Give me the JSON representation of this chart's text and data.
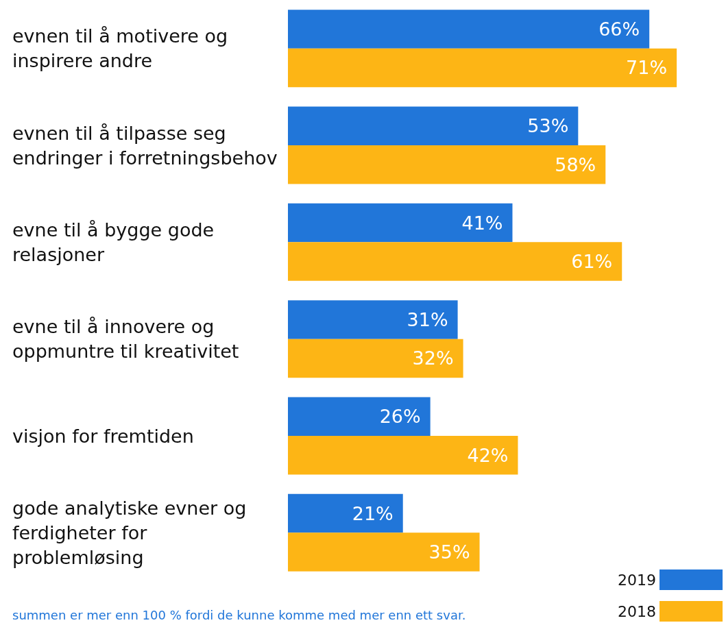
{
  "chart_data": {
    "type": "bar",
    "orientation": "horizontal",
    "categories": [
      "evnen til å motivere og inspirere andre",
      "evnen til å tilpasse seg endringer i forretningsbehov",
      "evne til å bygge gode relasjoner",
      "evne til å innovere og oppmuntre til kreativitet",
      "visjon for fremtiden",
      "gode analytiske evner og ferdigheter for problemløsing"
    ],
    "series": [
      {
        "name": "2019",
        "color": "#2176d9",
        "values": [
          66,
          53,
          41,
          31,
          26,
          21
        ],
        "value_labels": [
          "66%",
          "53%",
          "41%",
          "31%",
          "26%",
          "21%"
        ]
      },
      {
        "name": "2018",
        "color": "#fdb515",
        "values": [
          71,
          58,
          61,
          32,
          42,
          35
        ],
        "value_labels": [
          "71%",
          "58%",
          "61%",
          "32%",
          "42%",
          "35%"
        ]
      }
    ],
    "tick_labels": "y",
    "grid": false,
    "legend": "bottom right",
    "annotations": [
      "summen er mer enn 100 % fordi de kunne komme med mer enn ett svar."
    ]
  }
}
